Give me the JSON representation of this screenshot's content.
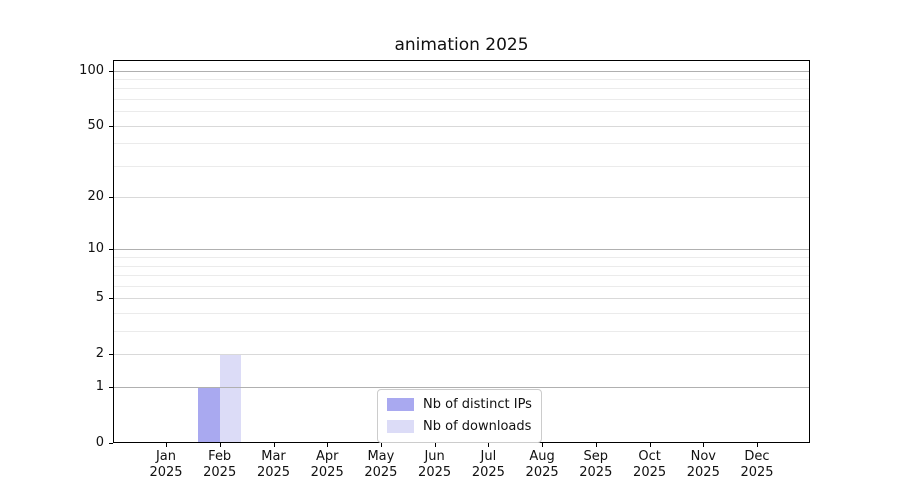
{
  "chart_data": {
    "type": "bar",
    "title": "animation 2025",
    "categories": [
      "Jan",
      "Feb",
      "Mar",
      "Apr",
      "May",
      "Jun",
      "Jul",
      "Aug",
      "Sep",
      "Oct",
      "Nov",
      "Dec"
    ],
    "year_label": "2025",
    "series": [
      {
        "name": "Nb of distinct IPs",
        "color": "#a9a9f0",
        "values": [
          0,
          1,
          0,
          0,
          0,
          0,
          0,
          0,
          0,
          0,
          0,
          0
        ]
      },
      {
        "name": "Nb of downloads",
        "color": "#dcdcf7",
        "values": [
          0,
          2,
          0,
          0,
          0,
          0,
          0,
          0,
          0,
          0,
          0,
          0
        ]
      }
    ],
    "xlabel": "",
    "ylabel": "",
    "yticks": [
      0,
      1,
      2,
      5,
      10,
      20,
      50,
      100
    ],
    "minor_gridlines": [
      3,
      4,
      6,
      7,
      8,
      9,
      30,
      40,
      60,
      70,
      80,
      90
    ],
    "decade_gridlines": [
      1,
      10,
      100
    ],
    "ylim": [
      0,
      113
    ],
    "yscale": "log1p",
    "grid": true,
    "grid_on_top_of_bars": true,
    "legend_position": "lower center",
    "colors": {
      "grid_decade": "#b0b0b0",
      "grid_major": "#d9d9d9",
      "grid_minor": "#ebebeb",
      "spine": "#000000",
      "text": "#111111",
      "background": "#ffffff",
      "legend_border": "#cccccc"
    }
  }
}
